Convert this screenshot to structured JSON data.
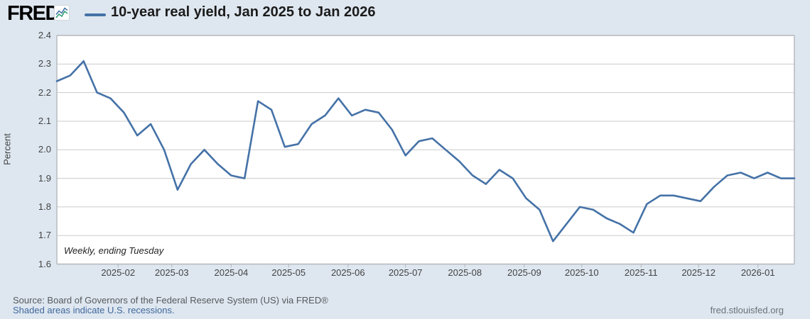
{
  "header": {
    "logo_text": "FRED",
    "registered_mark": "®",
    "title": "10-year real yield, Jan 2025 to Jan 2026"
  },
  "chart": {
    "y_axis_title": "Percent",
    "annotation": "Weekly, ending Tuesday"
  },
  "footer": {
    "source": "Source: Board of Governors of the Federal Reserve System (US) via FRED®",
    "recession_note": "Shaded areas indicate U.S. recessions.",
    "site": "fred.stlouisfed.org"
  },
  "colors": {
    "line": "#4572a7",
    "background": "#dee7f0",
    "plot_background": "#ffffff",
    "gridline": "#cbcbcb",
    "plot_border": "#b3b7bc",
    "logo_sparkline_blue": "#4572a7",
    "logo_sparkline_green": "#2f9e77",
    "link": "#40679c"
  },
  "chart_data": {
    "type": "line",
    "title": "10-year real yield, Jan 2025 to Jan 2026",
    "xlabel": "",
    "ylabel": "Percent",
    "frequency_note": "Weekly, ending Tuesday",
    "ylim": [
      1.6,
      2.4
    ],
    "y_ticks": [
      1.6,
      1.7,
      1.8,
      1.9,
      2.0,
      2.1,
      2.2,
      2.3,
      2.4
    ],
    "grid": "horizontal",
    "legend_position": "top-left",
    "series_name": "10-year real yield",
    "x_ticks": [
      {
        "label": "2025-02",
        "date": "2025-02-01"
      },
      {
        "label": "2025-03",
        "date": "2025-03-01"
      },
      {
        "label": "2025-04",
        "date": "2025-04-01"
      },
      {
        "label": "2025-05",
        "date": "2025-05-01"
      },
      {
        "label": "2025-06",
        "date": "2025-06-01"
      },
      {
        "label": "2025-07",
        "date": "2025-07-01"
      },
      {
        "label": "2025-08",
        "date": "2025-08-01"
      },
      {
        "label": "2025-09",
        "date": "2025-09-01"
      },
      {
        "label": "2025-10",
        "date": "2025-10-01"
      },
      {
        "label": "2025-11",
        "date": "2025-11-01"
      },
      {
        "label": "2025-12",
        "date": "2025-12-01"
      },
      {
        "label": "2026-01",
        "date": "2026-01-01"
      }
    ],
    "x": [
      "2024-12-31",
      "2025-01-07",
      "2025-01-14",
      "2025-01-21",
      "2025-01-28",
      "2025-02-04",
      "2025-02-11",
      "2025-02-18",
      "2025-02-25",
      "2025-03-04",
      "2025-03-11",
      "2025-03-18",
      "2025-03-25",
      "2025-04-01",
      "2025-04-08",
      "2025-04-15",
      "2025-04-22",
      "2025-04-29",
      "2025-05-06",
      "2025-05-13",
      "2025-05-20",
      "2025-05-27",
      "2025-06-03",
      "2025-06-10",
      "2025-06-17",
      "2025-06-24",
      "2025-07-01",
      "2025-07-08",
      "2025-07-15",
      "2025-07-22",
      "2025-07-29",
      "2025-08-05",
      "2025-08-12",
      "2025-08-19",
      "2025-08-26",
      "2025-09-02",
      "2025-09-09",
      "2025-09-16",
      "2025-09-23",
      "2025-09-30",
      "2025-10-07",
      "2025-10-14",
      "2025-10-21",
      "2025-10-28",
      "2025-11-04",
      "2025-11-11",
      "2025-11-18",
      "2025-11-25",
      "2025-12-02",
      "2025-12-09",
      "2025-12-16",
      "2025-12-23",
      "2025-12-30",
      "2026-01-06",
      "2026-01-13",
      "2026-01-20"
    ],
    "values": [
      2.24,
      2.26,
      2.31,
      2.2,
      2.18,
      2.13,
      2.05,
      2.09,
      2.0,
      1.86,
      1.95,
      2.0,
      1.95,
      1.91,
      1.9,
      2.17,
      2.14,
      2.01,
      2.02,
      2.09,
      2.12,
      2.18,
      2.12,
      2.14,
      2.13,
      2.07,
      1.98,
      2.03,
      2.04,
      2.0,
      1.96,
      1.91,
      1.88,
      1.93,
      1.9,
      1.83,
      1.79,
      1.68,
      1.74,
      1.8,
      1.79,
      1.76,
      1.74,
      1.71,
      1.81,
      1.84,
      1.84,
      1.83,
      1.82,
      1.87,
      1.91,
      1.92,
      1.9,
      1.92,
      1.9,
      1.9
    ]
  }
}
